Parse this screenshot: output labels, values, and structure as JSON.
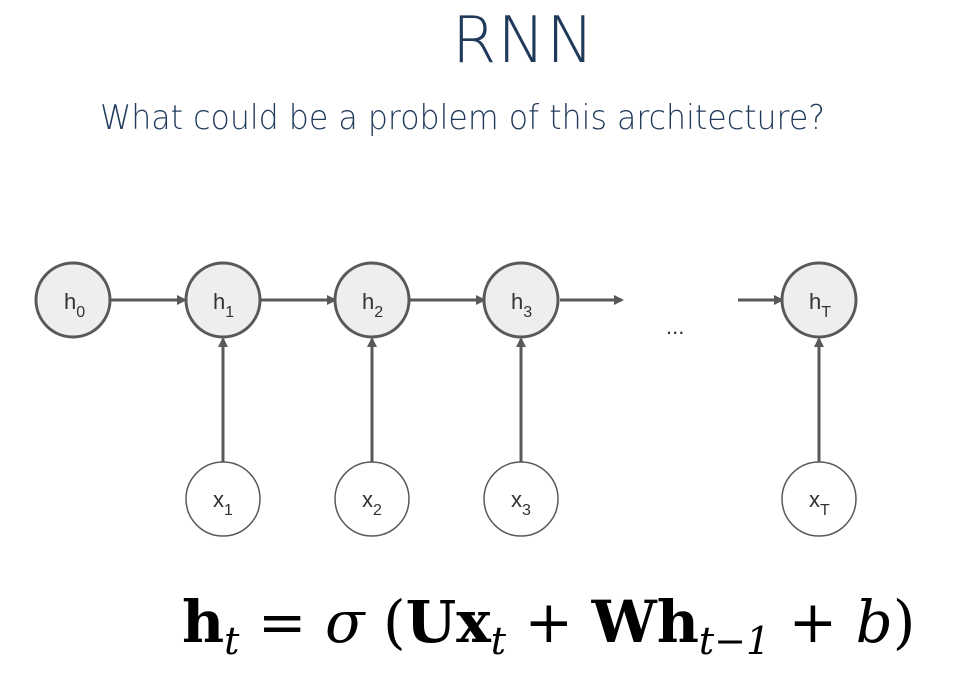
{
  "slide": {
    "title": "RNN",
    "subtitle": "What could be a problem of this architecture?"
  },
  "diagram": {
    "hidden_states": [
      {
        "base": "h",
        "sub": "0"
      },
      {
        "base": "h",
        "sub": "1"
      },
      {
        "base": "h",
        "sub": "2"
      },
      {
        "base": "h",
        "sub": "3"
      },
      {
        "base": "h",
        "sub": "T"
      }
    ],
    "inputs": [
      {
        "base": "x",
        "sub": "1"
      },
      {
        "base": "x",
        "sub": "2"
      },
      {
        "base": "x",
        "sub": "3"
      },
      {
        "base": "x",
        "sub": "T"
      }
    ],
    "ellipsis": "...",
    "colors": {
      "hidden_fill": "#eeeeee",
      "node_stroke": "#595959",
      "input_fill": "#ffffff",
      "arrow": "#595959"
    }
  },
  "formula": {
    "lhs_bold": "h",
    "lhs_sub": "t",
    "equals": " = ",
    "sigma": "σ",
    "open": " (",
    "U": "U",
    "x": "x",
    "x_sub": "t",
    "plus1": " + ",
    "W": "W",
    "h": "h",
    "h_sub": "t−1",
    "plus2": " + ",
    "b": "b",
    "close": ")"
  }
}
